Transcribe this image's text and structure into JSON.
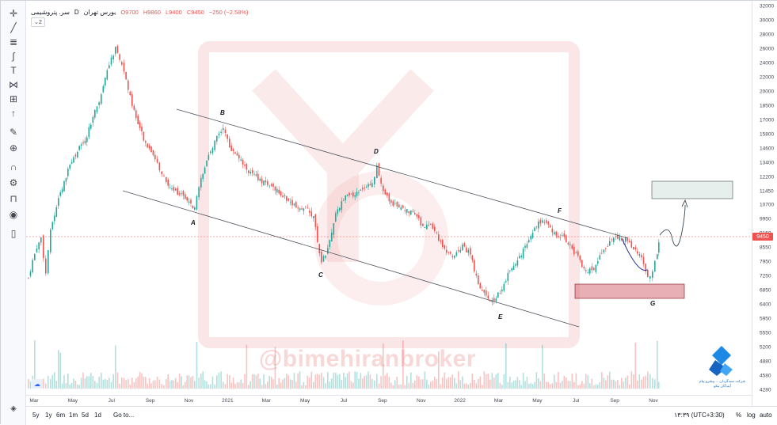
{
  "legend": {
    "symbol": "سر. پتروشیمی",
    "interval": "D",
    "exchange": "بورس تهران",
    "open": "O9700",
    "high": "H9860",
    "low": "L9400",
    "close": "C9450",
    "change": "−250 (−2.58%)",
    "indicator_count": "2"
  },
  "price_axis": {
    "ticks": [
      "32000",
      "30000",
      "28000",
      "26000",
      "24000",
      "22000",
      "20000",
      "18500",
      "17000",
      "15800",
      "14600",
      "13400",
      "12200",
      "11450",
      "10700",
      "9950",
      "9150",
      "8550",
      "7950",
      "7250",
      "6850",
      "6400",
      "5950",
      "5550",
      "5200",
      "4880",
      "4580",
      "4280"
    ],
    "last_price": "9450"
  },
  "time_axis": {
    "ticks": [
      "Mar",
      "May",
      "Jul",
      "Sep",
      "Nov",
      "2021",
      "Mar",
      "May",
      "Jul",
      "Sep",
      "Nov",
      "2022",
      "Mar",
      "May",
      "Jul",
      "Sep",
      "Nov"
    ]
  },
  "wave_labels": [
    "A",
    "B",
    "C",
    "D",
    "E",
    "F",
    "G"
  ],
  "watermark": "@bimehiranbroker",
  "logo_caption": "شرکت سبدگردان ... پیشرو پیام آیندگان نیکو",
  "bottom_bar": {
    "ranges": [
      "5y",
      "1y",
      "6m",
      "1m",
      "5d",
      "1d"
    ],
    "goto": "Go to...",
    "time": "۱۳:۳۹ (UTC+3:30)",
    "percent": "%",
    "log": "log",
    "auto": "auto"
  },
  "colors": {
    "up": "#26a69a",
    "down": "#ef5350",
    "accent": "#2962ff",
    "watermark": "#e57373"
  },
  "toolbar": {
    "icons": [
      "crosshair-icon",
      "trend-line-icon",
      "fib-icon",
      "brush-icon",
      "text-icon",
      "pattern-icon",
      "measure-icon",
      "arrow-icon",
      "ruler-icon",
      "zoom-icon",
      "magnet-icon",
      "lock-drawings-icon",
      "unlock-icon",
      "eye-icon",
      "trash-icon"
    ]
  }
}
